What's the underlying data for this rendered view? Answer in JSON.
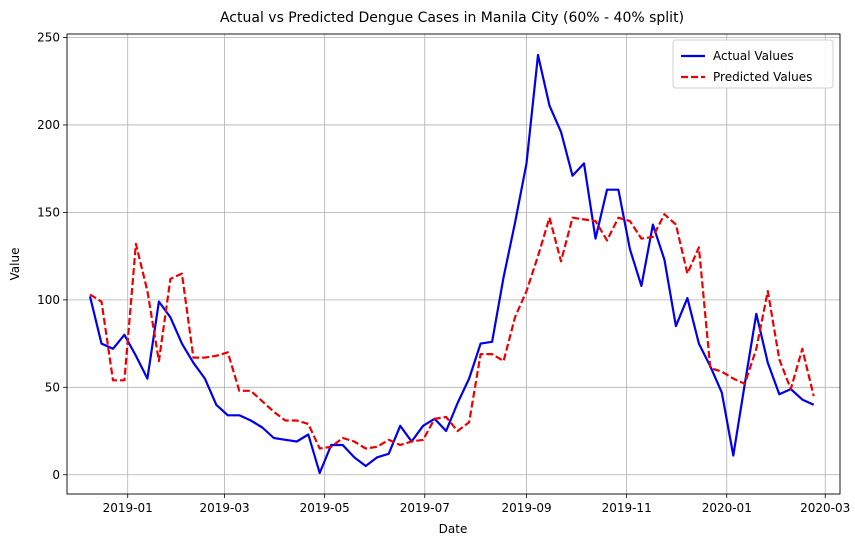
{
  "chart_data": {
    "type": "line",
    "title": "Actual vs Predicted Dengue Cases in Manila City (60% - 40% split)",
    "xlabel": "Date",
    "ylabel": "Value",
    "grid": true,
    "legend_position": "top-right",
    "xlim": [
      "2018-11-25",
      "2020-03-10"
    ],
    "ylim": [
      -11,
      252
    ],
    "xticks": [
      {
        "date": "2019-01-01",
        "label": "2019-01"
      },
      {
        "date": "2019-03-01",
        "label": "2019-03"
      },
      {
        "date": "2019-05-01",
        "label": "2019-05"
      },
      {
        "date": "2019-07-01",
        "label": "2019-07"
      },
      {
        "date": "2019-09-01",
        "label": "2019-09"
      },
      {
        "date": "2019-11-01",
        "label": "2019-11"
      },
      {
        "date": "2020-01-01",
        "label": "2020-01"
      },
      {
        "date": "2020-03-01",
        "label": "2020-03"
      }
    ],
    "yticks": [
      0,
      50,
      100,
      150,
      200,
      250
    ],
    "x": [
      "2018-12-09",
      "2018-12-16",
      "2018-12-23",
      "2018-12-30",
      "2019-01-06",
      "2019-01-13",
      "2019-01-20",
      "2019-01-27",
      "2019-02-03",
      "2019-02-10",
      "2019-02-17",
      "2019-02-24",
      "2019-03-03",
      "2019-03-10",
      "2019-03-17",
      "2019-03-24",
      "2019-03-31",
      "2019-04-07",
      "2019-04-14",
      "2019-04-21",
      "2019-04-28",
      "2019-05-05",
      "2019-05-12",
      "2019-05-19",
      "2019-05-26",
      "2019-06-02",
      "2019-06-09",
      "2019-06-16",
      "2019-06-23",
      "2019-06-30",
      "2019-07-07",
      "2019-07-14",
      "2019-07-21",
      "2019-07-28",
      "2019-08-04",
      "2019-08-11",
      "2019-08-18",
      "2019-08-25",
      "2019-09-01",
      "2019-09-08",
      "2019-09-15",
      "2019-09-22",
      "2019-09-29",
      "2019-10-06",
      "2019-10-13",
      "2019-10-20",
      "2019-10-27",
      "2019-11-03",
      "2019-11-10",
      "2019-11-17",
      "2019-11-24",
      "2019-12-01",
      "2019-12-08",
      "2019-12-15",
      "2019-12-22",
      "2019-12-29",
      "2020-01-05",
      "2020-01-12",
      "2020-01-19",
      "2020-01-26",
      "2020-02-02",
      "2020-02-09",
      "2020-02-16",
      "2020-02-23"
    ],
    "series": [
      {
        "name": "Actual Values",
        "color": "#0000ee",
        "style": "solid",
        "values": [
          102,
          75,
          72,
          80,
          68,
          55,
          99,
          90,
          75,
          64,
          55,
          40,
          34,
          34,
          31,
          27,
          21,
          20,
          19,
          23,
          1,
          17,
          17,
          10,
          5,
          10,
          12,
          28,
          19,
          28,
          32,
          25,
          41,
          55,
          75,
          76,
          113,
          144,
          178,
          240,
          211,
          196,
          171,
          178,
          135,
          163,
          163,
          129,
          108,
          143,
          123,
          85,
          101,
          75,
          62,
          47,
          11,
          52,
          92,
          64,
          46,
          49,
          43,
          40
        ]
      },
      {
        "name": "Predicted Values",
        "color": "#ee0000",
        "style": "dashed",
        "values": [
          103,
          99,
          54,
          54,
          132,
          105,
          65,
          112,
          115,
          67,
          67,
          68,
          70,
          48,
          48,
          42,
          36,
          31,
          31,
          29,
          15,
          16,
          21,
          19,
          15,
          16,
          20,
          17,
          19,
          20,
          32,
          33,
          25,
          30,
          69,
          69,
          65,
          90,
          105,
          125,
          147,
          122,
          147,
          146,
          145,
          134,
          147,
          145,
          135,
          136,
          149,
          143,
          115,
          130,
          61,
          59,
          55,
          52,
          72,
          105,
          66,
          49,
          72,
          45
        ]
      }
    ]
  }
}
